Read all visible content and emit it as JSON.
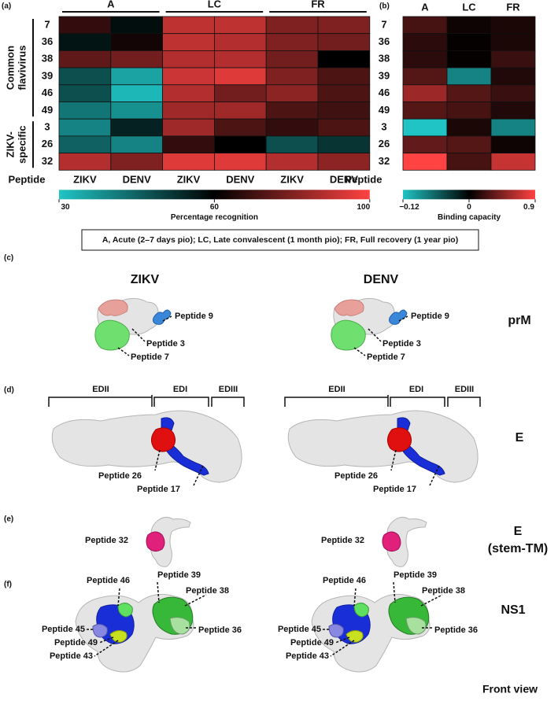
{
  "panel_a": {
    "label": "(a)",
    "groups": [
      "A",
      "LC",
      "FR"
    ],
    "columns": [
      "ZIKV",
      "DENV",
      "ZIKV",
      "DENV",
      "ZIKV",
      "DENV"
    ],
    "row_groups": [
      [
        "Common",
        "flavivirus"
      ],
      [
        "ZIKV-",
        "specific"
      ]
    ],
    "rows": [
      "7",
      "36",
      "38",
      "39",
      "46",
      "49",
      "3",
      "26",
      "32"
    ],
    "row_header": "Peptide",
    "values": [
      [
        68,
        58,
        90,
        90,
        80,
        80
      ],
      [
        57,
        63,
        90,
        88,
        80,
        78
      ],
      [
        75,
        78,
        88,
        88,
        78,
        60
      ],
      [
        48,
        35,
        92,
        95,
        80,
        72
      ],
      [
        48,
        32,
        88,
        78,
        82,
        72
      ],
      [
        42,
        38,
        85,
        85,
        72,
        70
      ],
      [
        40,
        55,
        85,
        72,
        68,
        72
      ],
      [
        45,
        40,
        68,
        60,
        48,
        52
      ],
      [
        88,
        80,
        95,
        95,
        88,
        82
      ]
    ],
    "colorbar": {
      "ticks": [
        30,
        60,
        100
      ],
      "colors": [
        "#20c4c4",
        "#000000",
        "#ff4242"
      ],
      "label": "Percentage recognition"
    }
  },
  "panel_b": {
    "label": "(b)",
    "columns": [
      "A",
      "LC",
      "FR"
    ],
    "rows": [
      "7",
      "36",
      "38",
      "39",
      "46",
      "49",
      "3",
      "26",
      "32"
    ],
    "row_header": "Peptide",
    "values": [
      [
        0.25,
        0.05,
        0.1
      ],
      [
        0.15,
        0.02,
        0.1
      ],
      [
        0.15,
        0.02,
        0.2
      ],
      [
        0.3,
        -0.08,
        0.12
      ],
      [
        0.55,
        0.3,
        0.2
      ],
      [
        0.3,
        0.25,
        0.12
      ],
      [
        -0.12,
        0.1,
        -0.08
      ],
      [
        0.35,
        0.3,
        0.05
      ],
      [
        0.9,
        0.25,
        0.7
      ]
    ],
    "colorbar": {
      "ticks": [
        {
          "value": -0.12,
          "label": "−0.12"
        },
        0,
        0.9
      ],
      "colors": [
        "#20c4c4",
        "#000000",
        "#ff4242"
      ],
      "label": "Binding capacity"
    }
  },
  "footnote": "A, Acute (2–7 days pio); LC, Late convalescent (1 month pio); FR, Full recovery (1 year pio)",
  "panel_c": {
    "label": "(c)",
    "viruses": [
      "ZIKV",
      "DENV"
    ],
    "protein": "prM",
    "peptides": [
      "Peptide 9",
      "Peptide 3",
      "Peptide 7"
    ]
  },
  "panel_d": {
    "label": "(d)",
    "domains": [
      "EDII",
      "EDI",
      "EDIII"
    ],
    "protein": "E",
    "peptides": [
      "Peptide 26",
      "Peptide 17"
    ]
  },
  "panel_e": {
    "label": "(e)",
    "protein": [
      "E",
      "(stem-TM)"
    ],
    "peptides": [
      "Peptide 32"
    ]
  },
  "panel_f": {
    "label": "(f)",
    "protein": "NS1",
    "peptides": [
      "Peptide 46",
      "Peptide 39",
      "Peptide 38",
      "Peptide 36",
      "Peptide 45",
      "Peptide 49",
      "Peptide 43"
    ],
    "view": "Front view"
  }
}
